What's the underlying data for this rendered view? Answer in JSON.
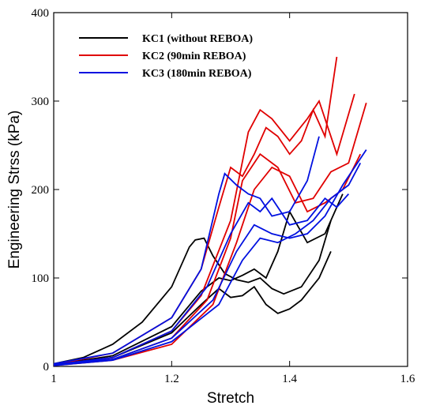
{
  "chart_data": {
    "type": "line",
    "x_label": "Stretch",
    "y_label": "Engineering Strss (kPa)",
    "xlim": [
      1,
      1.6
    ],
    "xticks": [
      1,
      1.2,
      1.4,
      1.6
    ],
    "ylim": [
      0,
      400
    ],
    "yticks": [
      0,
      100,
      200,
      300,
      400
    ],
    "legend": "upper left",
    "series": [
      {
        "name": "KC1 (without REBOA)",
        "color": "#000000",
        "lines": [
          {
            "x": [
              1,
              1.05,
              1.1,
              1.15,
              1.2,
              1.23,
              1.24,
              1.255,
              1.27,
              1.29,
              1.31,
              1.33,
              1.35,
              1.37,
              1.39,
              1.42,
              1.45,
              1.47
            ],
            "values": [
              3,
              10,
              25,
              50,
              90,
              135,
              143,
              145,
              125,
              105,
              98,
              95,
              100,
              88,
              82,
              90,
              120,
              165
            ]
          },
          {
            "x": [
              1,
              1.1,
              1.2,
              1.25,
              1.28,
              1.3,
              1.32,
              1.34,
              1.36,
              1.38,
              1.4,
              1.43,
              1.46,
              1.49
            ],
            "values": [
              2,
              12,
              45,
              85,
              100,
              97,
              103,
              110,
              100,
              130,
              175,
              140,
              150,
              195
            ]
          },
          {
            "x": [
              1,
              1.1,
              1.2,
              1.25,
              1.28,
              1.3,
              1.32,
              1.34,
              1.36,
              1.38,
              1.4,
              1.42,
              1.45,
              1.47
            ],
            "values": [
              2,
              10,
              38,
              70,
              88,
              78,
              80,
              90,
              70,
              60,
              65,
              75,
              100,
              130
            ]
          }
        ]
      },
      {
        "name": "KC2 (90min REBOA)",
        "color": "#e00000",
        "lines": [
          {
            "x": [
              1,
              1.1,
              1.2,
              1.25,
              1.28,
              1.3,
              1.32,
              1.34,
              1.36,
              1.38,
              1.4,
              1.42,
              1.44,
              1.46,
              1.48
            ],
            "values": [
              2,
              15,
              55,
              110,
              180,
              225,
              215,
              240,
              270,
              260,
              240,
              255,
              290,
              260,
              350
            ]
          },
          {
            "x": [
              1,
              1.1,
              1.2,
              1.25,
              1.3,
              1.33,
              1.35,
              1.37,
              1.4,
              1.43,
              1.45,
              1.48,
              1.51
            ],
            "values": [
              2,
              10,
              40,
              80,
              165,
              265,
              290,
              280,
              255,
              280,
              300,
              240,
              308
            ]
          },
          {
            "x": [
              1,
              1.1,
              1.2,
              1.26,
              1.3,
              1.32,
              1.35,
              1.38,
              1.41,
              1.44,
              1.47,
              1.5,
              1.53
            ],
            "values": [
              2,
              8,
              32,
              75,
              145,
              210,
              240,
              225,
              185,
              190,
              220,
              230,
              298
            ]
          },
          {
            "x": [
              1,
              1.1,
              1.2,
              1.27,
              1.31,
              1.34,
              1.37,
              1.4,
              1.43,
              1.46,
              1.49,
              1.52
            ],
            "values": [
              1,
              7,
              25,
              70,
              140,
              200,
              225,
              215,
              175,
              185,
              200,
              240
            ]
          }
        ]
      },
      {
        "name": "KC3 (180min REBOA)",
        "color": "#0010e0",
        "lines": [
          {
            "x": [
              1,
              1.1,
              1.2,
              1.25,
              1.28,
              1.29,
              1.31,
              1.33,
              1.35,
              1.37,
              1.4,
              1.43,
              1.45
            ],
            "values": [
              3,
              15,
              55,
              110,
              195,
              218,
              205,
              195,
              190,
              170,
              175,
              210,
              260
            ]
          },
          {
            "x": [
              1,
              1.1,
              1.2,
              1.26,
              1.3,
              1.33,
              1.35,
              1.37,
              1.4,
              1.43,
              1.46,
              1.48,
              1.5
            ],
            "values": [
              2,
              10,
              40,
              90,
              150,
              185,
              175,
              190,
              160,
              165,
              190,
              180,
              195
            ]
          },
          {
            "x": [
              1,
              1.1,
              1.2,
              1.27,
              1.31,
              1.34,
              1.37,
              1.4,
              1.43,
              1.46,
              1.49,
              1.53
            ],
            "values": [
              2,
              8,
              32,
              75,
              130,
              160,
              150,
              145,
              150,
              170,
              205,
              245
            ]
          },
          {
            "x": [
              1,
              1.1,
              1.2,
              1.28,
              1.32,
              1.35,
              1.38,
              1.41,
              1.44,
              1.47,
              1.5,
              1.52
            ],
            "values": [
              1,
              7,
              28,
              70,
              120,
              145,
              140,
              150,
              165,
              190,
              205,
              230
            ]
          }
        ]
      }
    ]
  }
}
